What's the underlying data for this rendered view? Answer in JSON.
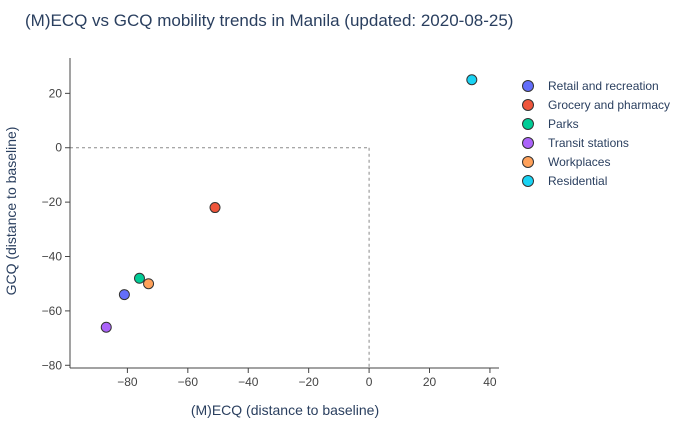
{
  "chart_data": {
    "type": "scatter",
    "title": "(M)ECQ vs GCQ mobility trends in Manila (updated: 2020-08-25)",
    "xlabel": "(M)ECQ (distance to baseline)",
    "ylabel": "GCQ (distance to baseline)",
    "xlim": [
      -99,
      43
    ],
    "ylim": [
      -81,
      33
    ],
    "xticks": [
      -80,
      -60,
      -40,
      -20,
      0,
      20,
      40
    ],
    "yticks": [
      20,
      0,
      -20,
      -40,
      -60,
      -80
    ],
    "xtick_labels": [
      "−80",
      "−60",
      "−40",
      "−20",
      "0",
      "20",
      "40"
    ],
    "ytick_labels": [
      "20",
      "0",
      "−20",
      "−40",
      "−60",
      "−80"
    ],
    "reference_lines": {
      "x": 0,
      "y": 0,
      "style": "dashed"
    },
    "legend_position": "right",
    "series": [
      {
        "name": "Retail and recreation",
        "color": "#636efa",
        "x": [
          -81
        ],
        "y": [
          -54
        ]
      },
      {
        "name": "Grocery and pharmacy",
        "color": "#ef553b",
        "x": [
          -51
        ],
        "y": [
          -22
        ]
      },
      {
        "name": "Parks",
        "color": "#00cc96",
        "x": [
          -76
        ],
        "y": [
          -48
        ]
      },
      {
        "name": "Transit stations",
        "color": "#ab63fa",
        "x": [
          -87
        ],
        "y": [
          -66
        ]
      },
      {
        "name": "Workplaces",
        "color": "#ffa15a",
        "x": [
          -73
        ],
        "y": [
          -50
        ]
      },
      {
        "name": "Residential",
        "color": "#19d3f3",
        "x": [
          34
        ],
        "y": [
          25
        ]
      }
    ]
  }
}
